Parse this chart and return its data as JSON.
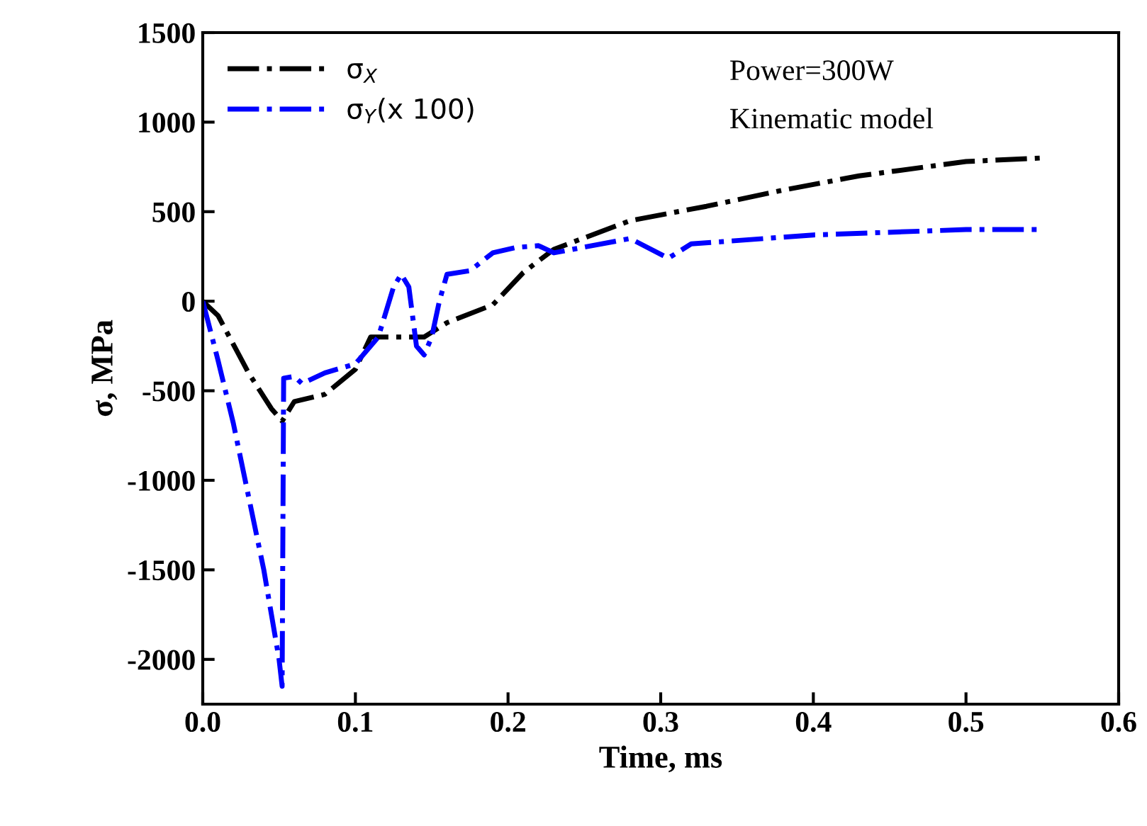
{
  "chart_data": {
    "type": "line",
    "xlabel": "Time, ms",
    "ylabel": "σ, MPa",
    "xlim": [
      0,
      0.6
    ],
    "ylim": [
      -2250,
      1500
    ],
    "xticks": [
      {
        "value": 0,
        "label": "0.0"
      },
      0.1,
      0.2,
      0.3,
      0.4,
      0.5,
      0.6
    ],
    "yticks": [
      -2000,
      -1500,
      -1000,
      -500,
      0,
      500,
      1000,
      1500
    ],
    "grid": false,
    "legend": "top left",
    "line_style": "dashdot",
    "marker": "none",
    "annotations": [
      "Power=300W",
      "Kinematic model"
    ],
    "series": [
      {
        "name": "σ$_{X}$",
        "color": "#000000",
        "x": [
          0,
          0.01,
          0.03,
          0.045,
          0.052,
          0.06,
          0.08,
          0.1,
          0.11,
          0.13,
          0.145,
          0.16,
          0.19,
          0.21,
          0.23,
          0.28,
          0.33,
          0.38,
          0.43,
          0.5,
          0.55
        ],
        "values": [
          0,
          -80,
          -400,
          -600,
          -670,
          -560,
          -520,
          -380,
          -200,
          -200,
          -200,
          -120,
          -20,
          160,
          290,
          450,
          530,
          620,
          700,
          780,
          800
        ]
      },
      {
        "name": "σ$_{Y}$(x 100)",
        "color": "#0000ff",
        "x": [
          0,
          0.01,
          0.02,
          0.04,
          0.05,
          0.052,
          0.053,
          0.06,
          0.065,
          0.08,
          0.1,
          0.115,
          0.125,
          0.13,
          0.135,
          0.14,
          0.145,
          0.15,
          0.155,
          0.16,
          0.175,
          0.19,
          0.205,
          0.22,
          0.23,
          0.28,
          0.305,
          0.32,
          0.4,
          0.5,
          0.55
        ],
        "values": [
          0,
          -330,
          -680,
          -1500,
          -2000,
          -2150,
          -430,
          -420,
          -460,
          -400,
          -350,
          -200,
          80,
          150,
          80,
          -250,
          -300,
          -200,
          0,
          150,
          170,
          270,
          300,
          310,
          270,
          350,
          240,
          320,
          370,
          400,
          400
        ]
      }
    ]
  }
}
